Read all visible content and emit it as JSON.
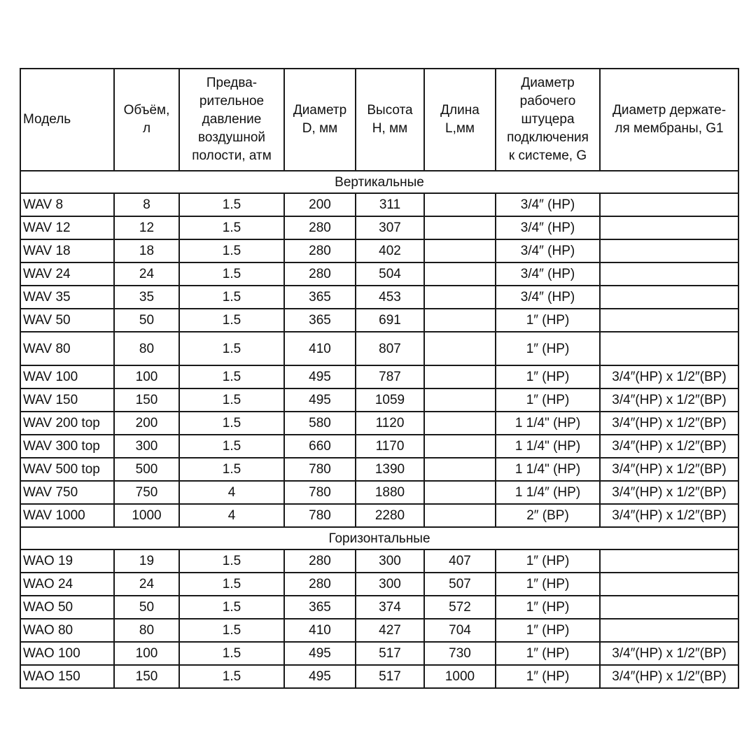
{
  "headers": [
    "Модель",
    "Объём,\nл",
    "Предва-\nрительное\nдавление\nвоздушной\nполости, атм",
    "Диаметр\nD, мм",
    "Высота\nН, мм",
    "Длина\nL,мм",
    "Диаметр\nрабочего\nштуцера\nподключения\nк системе, G",
    "Диаметр держате-\nля мембраны, G1"
  ],
  "sections": [
    {
      "title": "Вертикальные",
      "rows": [
        [
          "WAV 8",
          "8",
          "1.5",
          "200",
          "311",
          "",
          "3/4″ (НР)",
          ""
        ],
        [
          "WAV 12",
          "12",
          "1.5",
          "280",
          "307",
          "",
          "3/4″ (НР)",
          ""
        ],
        [
          "WAV 18",
          "18",
          "1.5",
          "280",
          "402",
          "",
          "3/4″ (НР)",
          ""
        ],
        [
          "WAV 24",
          "24",
          "1.5",
          "280",
          "504",
          "",
          "3/4″ (НР)",
          ""
        ],
        [
          "WAV 35",
          "35",
          "1.5",
          "365",
          "453",
          "",
          "3/4″ (НР)",
          ""
        ],
        [
          "WAV 50",
          "50",
          "1.5",
          "365",
          "691",
          "",
          "1″ (НР)",
          ""
        ],
        [
          "WAV 80",
          "80",
          "1.5",
          "410",
          "807",
          "",
          "1″ (НР)",
          ""
        ],
        [
          "WAV 100",
          "100",
          "1.5",
          "495",
          "787",
          "",
          "1″ (НР)",
          "3/4″(НР) x 1/2″(ВР)"
        ],
        [
          "WAV 150",
          "150",
          "1.5",
          "495",
          "1059",
          "",
          "1″ (НР)",
          "3/4″(НР) x 1/2″(ВР)"
        ],
        [
          "WAV 200 top",
          "200",
          "1.5",
          "580",
          "1120",
          "",
          "1 1/4\" (НР)",
          "3/4″(НР) x 1/2″(ВР)"
        ],
        [
          "WAV 300 top",
          "300",
          "1.5",
          "660",
          "1170",
          "",
          "1 1/4\" (НР)",
          "3/4″(НР) x 1/2″(ВР)"
        ],
        [
          "WAV 500 top",
          "500",
          "1.5",
          "780",
          "1390",
          "",
          "1 1/4\" (НР)",
          "3/4″(НР) x 1/2″(ВР)"
        ],
        [
          "WAV 750",
          "750",
          "4",
          "780",
          "1880",
          "",
          "1 1/4″ (НР)",
          "3/4″(НР) x 1/2″(ВР)"
        ],
        [
          "WAV 1000",
          "1000",
          "4",
          "780",
          "2280",
          "",
          "2″ (ВР)",
          "3/4″(НР) x 1/2″(ВР)"
        ]
      ]
    },
    {
      "title": "Горизонтальные",
      "rows": [
        [
          "WAO 19",
          "19",
          "1.5",
          "280",
          "300",
          "407",
          "1″ (НР)",
          ""
        ],
        [
          "WAO 24",
          "24",
          "1.5",
          "280",
          "300",
          "507",
          "1″ (НР)",
          ""
        ],
        [
          "WAO 50",
          "50",
          "1.5",
          "365",
          "374",
          "572",
          "1″ (НР)",
          ""
        ],
        [
          "WAO 80",
          "80",
          "1.5",
          "410",
          "427",
          "704",
          "1″ (НР)",
          ""
        ],
        [
          "WAO 100",
          "100",
          "1.5",
          "495",
          "517",
          "730",
          "1″ (НР)",
          "3/4″(НР) x 1/2″(ВР)"
        ],
        [
          "WAO 150",
          "150",
          "1.5",
          "495",
          "517",
          "1000",
          "1″ (НР)",
          "3/4″(НР) x 1/2″(ВР)"
        ]
      ]
    }
  ]
}
